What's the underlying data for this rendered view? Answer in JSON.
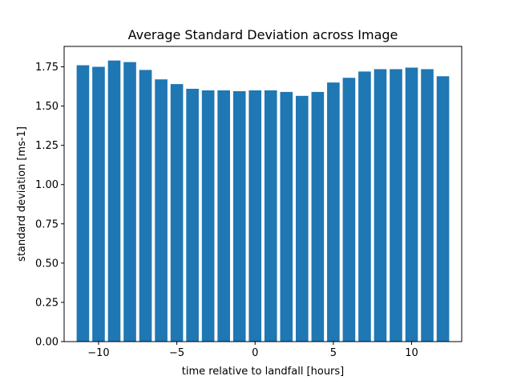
{
  "chart_data": {
    "type": "bar",
    "title": "Average Standard Deviation across Image",
    "xlabel": "time relative to landfall [hours]",
    "ylabel": "standard deviation [ms-1]",
    "x": [
      -11,
      -10,
      -9,
      -8,
      -7,
      -6,
      -5,
      -4,
      -3,
      -2,
      -1,
      0,
      1,
      2,
      3,
      4,
      5,
      6,
      7,
      8,
      9,
      10,
      11,
      12
    ],
    "values": [
      1.76,
      1.75,
      1.79,
      1.78,
      1.73,
      1.67,
      1.64,
      1.61,
      1.6,
      1.6,
      1.595,
      1.6,
      1.6,
      1.59,
      1.565,
      1.59,
      1.65,
      1.68,
      1.72,
      1.735,
      1.735,
      1.745,
      1.735,
      1.69
    ],
    "xlim": [
      -12.2,
      13.2
    ],
    "ylim": [
      0,
      1.88
    ],
    "xticks": [
      -10,
      -5,
      0,
      5,
      10
    ],
    "xtick_labels": [
      "−10",
      "−5",
      "0",
      "5",
      "10"
    ],
    "yticks": [
      0.0,
      0.25,
      0.5,
      0.75,
      1.0,
      1.25,
      1.5,
      1.75
    ],
    "ytick_labels": [
      "0.00",
      "0.25",
      "0.50",
      "0.75",
      "1.00",
      "1.25",
      "1.50",
      "1.75"
    ],
    "bar_color": "#1f77b4",
    "grid": false,
    "legend": "none"
  }
}
